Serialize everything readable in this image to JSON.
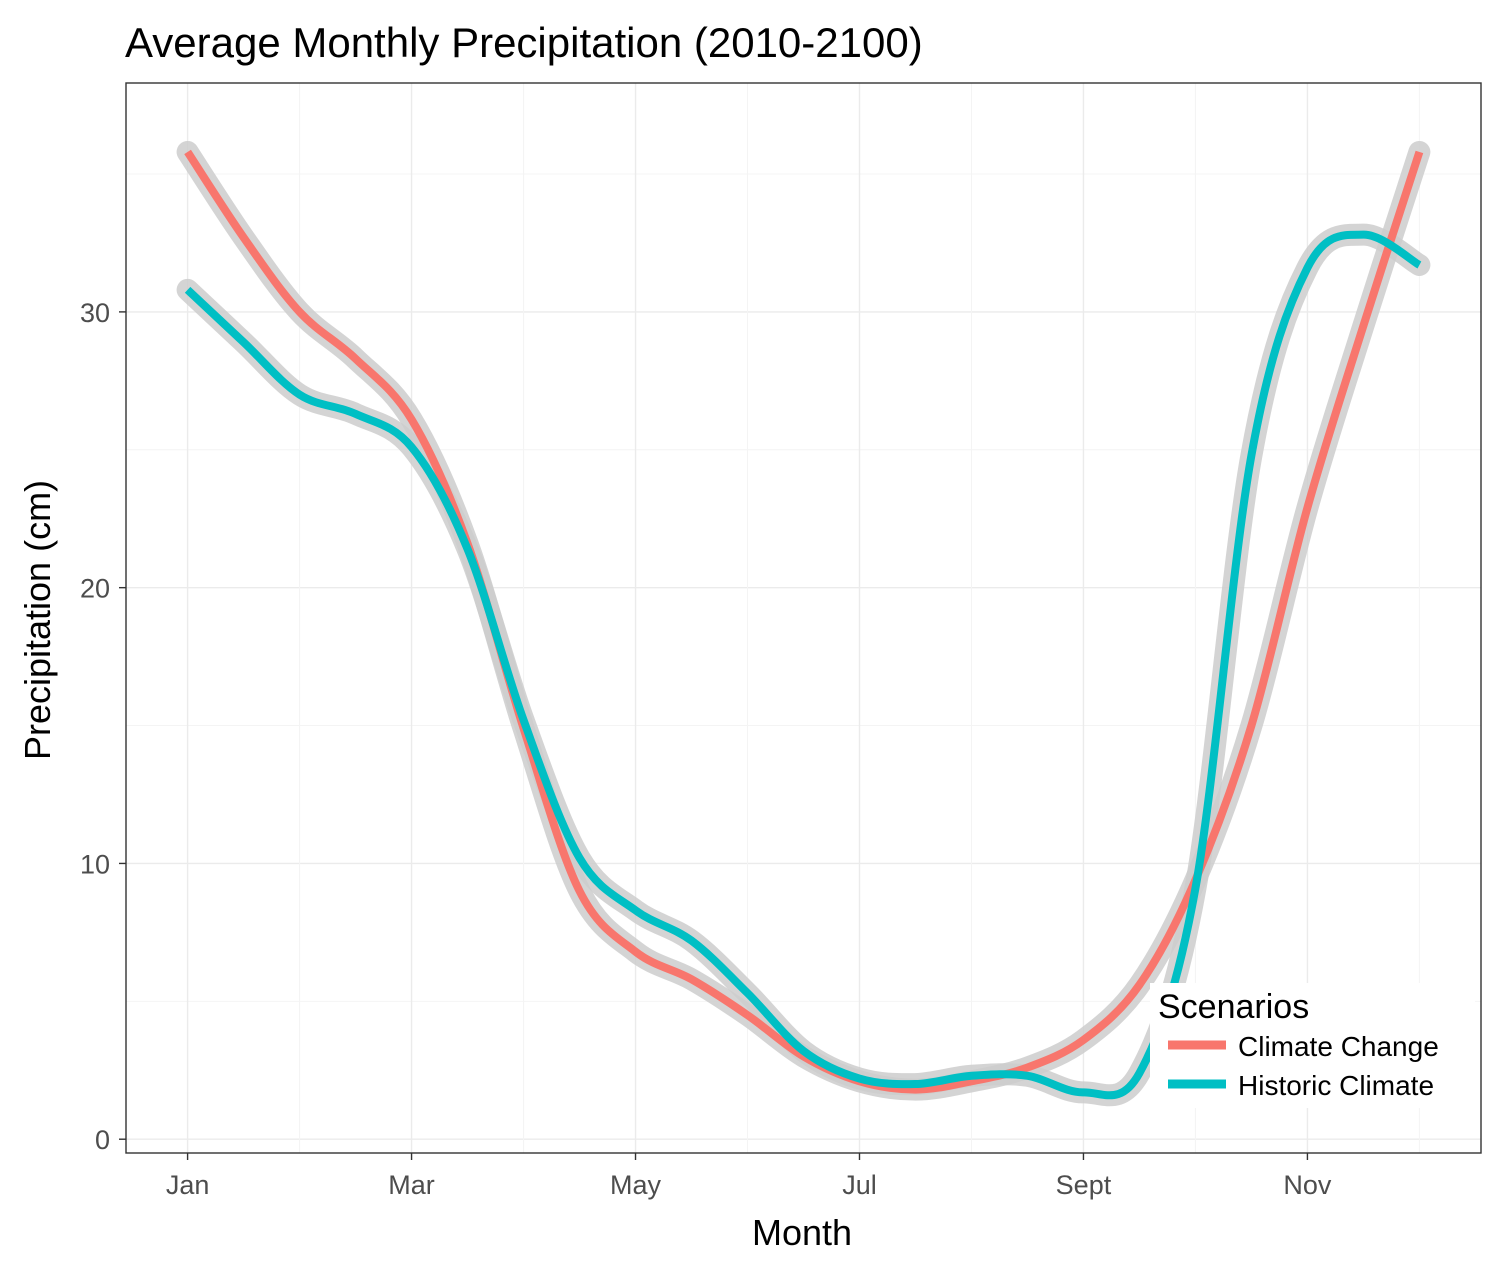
{
  "chart_data": {
    "type": "line",
    "title": "Average Monthly Precipitation (2010-2100)",
    "xlabel": "Month",
    "ylabel": "Precipitation (cm)",
    "x_tick_labels": [
      "Jan",
      "Mar",
      "May",
      "Jul",
      "Sept",
      "Nov"
    ],
    "x_tick_positions": [
      1,
      3,
      5,
      7,
      9,
      11
    ],
    "x": [
      1,
      1.5,
      2,
      2.5,
      3,
      3.5,
      4,
      4.5,
      5,
      5.5,
      6,
      6.5,
      7,
      7.5,
      8,
      8.5,
      9,
      9.5,
      10,
      10.5,
      11,
      11.5,
      12
    ],
    "xlim": [
      0.45,
      12.55
    ],
    "ylim": [
      -0.5,
      38.3
    ],
    "y_ticks": [
      0,
      10,
      20,
      30
    ],
    "grid": true,
    "ribbon": true,
    "ribbon_color": "#cccccc",
    "series": [
      {
        "name": "Climate Change",
        "color": "#f8766d",
        "values": [
          35.8,
          32.7,
          30.0,
          28.3,
          26.1,
          21.6,
          14.9,
          9.0,
          6.8,
          5.8,
          4.5,
          3.0,
          2.1,
          1.8,
          2.1,
          2.6,
          3.6,
          5.6,
          9.4,
          15.0,
          22.9,
          29.5,
          35.8
        ]
      },
      {
        "name": "Historic Climate",
        "color": "#00bfc4",
        "values": [
          30.8,
          28.9,
          27.0,
          26.3,
          25.1,
          21.4,
          15.2,
          10.2,
          8.3,
          7.2,
          5.3,
          3.2,
          2.2,
          2.0,
          2.3,
          2.3,
          1.7,
          2.4,
          9.1,
          24.8,
          31.6,
          32.8,
          31.7
        ]
      }
    ],
    "legend": {
      "title": "Scenarios",
      "position": "bottom-right"
    }
  }
}
